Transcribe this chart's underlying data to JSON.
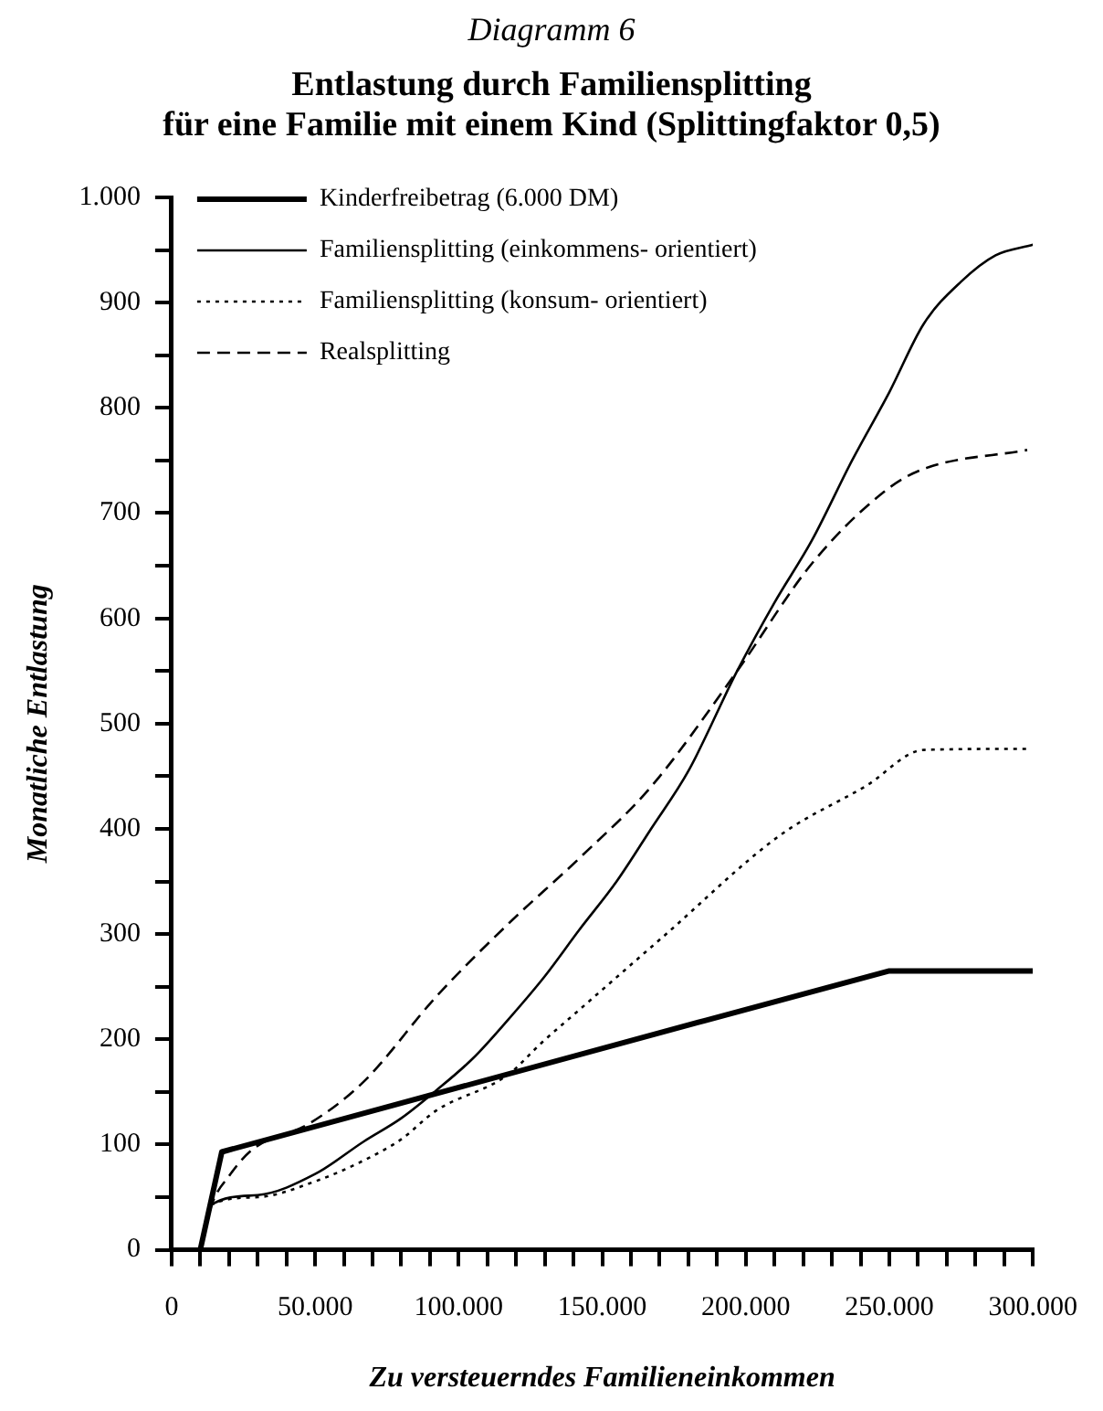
{
  "chart_data": {
    "type": "line",
    "title": "Diagramm 6",
    "subtitle": "Entlastung durch Familiensplitting\nfür eine Familie mit einem Kind (Splittingfaktor 0,5)",
    "xlabel": "Zu versteuerndes Familieneinkommen",
    "ylabel": "Monatliche Entlastung",
    "xlim": [
      0,
      300000
    ],
    "ylim": [
      0,
      1000
    ],
    "xticks": [
      0,
      {
        "value": 10000,
        "label": null
      },
      {
        "value": 20000,
        "label": null
      },
      {
        "value": 30000,
        "label": null
      },
      {
        "value": 40000,
        "label": null
      },
      {
        "value": 50000,
        "label": "50.000"
      },
      {
        "value": 60000,
        "label": null
      },
      {
        "value": 70000,
        "label": null
      },
      {
        "value": 80000,
        "label": null
      },
      {
        "value": 90000,
        "label": null
      },
      {
        "value": 100000,
        "label": "100.000"
      },
      {
        "value": 110000,
        "label": null
      },
      {
        "value": 120000,
        "label": null
      },
      {
        "value": 130000,
        "label": null
      },
      {
        "value": 140000,
        "label": null
      },
      {
        "value": 150000,
        "label": "150.000"
      },
      {
        "value": 160000,
        "label": null
      },
      {
        "value": 170000,
        "label": null
      },
      {
        "value": 180000,
        "label": null
      },
      {
        "value": 190000,
        "label": null
      },
      {
        "value": 200000,
        "label": "200.000"
      },
      {
        "value": 210000,
        "label": null
      },
      {
        "value": 220000,
        "label": null
      },
      {
        "value": 230000,
        "label": null
      },
      {
        "value": 240000,
        "label": null
      },
      {
        "value": 250000,
        "label": "250.000"
      },
      {
        "value": 260000,
        "label": null
      },
      {
        "value": 270000,
        "label": null
      },
      {
        "value": 280000,
        "label": null
      },
      {
        "value": 290000,
        "label": null
      },
      {
        "value": 300000,
        "label": "300.000"
      }
    ],
    "yticks": [
      0,
      {
        "value": 50,
        "label": null
      },
      100,
      {
        "value": 150,
        "label": null
      },
      200,
      {
        "value": 250,
        "label": null
      },
      300,
      {
        "value": 350,
        "label": null
      },
      400,
      {
        "value": 450,
        "label": null
      },
      500,
      {
        "value": 550,
        "label": null
      },
      600,
      {
        "value": 650,
        "label": null
      },
      700,
      {
        "value": 750,
        "label": null
      },
      800,
      {
        "value": 850,
        "label": null
      },
      900,
      {
        "value": 950,
        "label": null
      },
      {
        "value": 1000,
        "label": "1.000"
      }
    ],
    "grid": false,
    "legend": "top left",
    "marker": "none",
    "series": [
      {
        "name": "Kinderfreibetrag (6.000 DM)",
        "color": "#000000",
        "line_style": "solid",
        "x": [
          10000,
          17500,
          186000,
          250000,
          300000
        ],
        "values": [
          0,
          93,
          218,
          265,
          265
        ]
      },
      {
        "name": "Familiensplitting (einkommens- orientiert)",
        "color": "#000000",
        "line_style": "solid",
        "x": [
          10000,
          14000,
          30000,
          50000,
          67000,
          80000,
          92000,
          105000,
          117000,
          130000,
          142000,
          155000,
          167000,
          180000,
          197000,
          210000,
          223000,
          237000,
          250000,
          262000,
          275000,
          287000,
          300000
        ],
        "values": [
          0,
          43,
          52,
          72,
          103,
          125,
          151,
          182,
          218,
          260,
          304,
          350,
          400,
          455,
          550,
          615,
          674,
          750,
          815,
          880,
          920,
          945,
          955
        ]
      },
      {
        "name": "Familiensplitting (konsum- orientiert)",
        "color": "#000000",
        "line_style": "dotted",
        "x": [
          10000,
          14000,
          30000,
          50000,
          67000,
          80000,
          92000,
          117000,
          129000,
          142000,
          171000,
          212000,
          242000,
          262000,
          298000
        ],
        "values": [
          0,
          43,
          50,
          65,
          85,
          105,
          132,
          166,
          197,
          228,
          297,
          394,
          441,
          475,
          476
        ]
      },
      {
        "name": "Realsplitting",
        "color": "#000000",
        "line_style": "dashed",
        "x": [
          10000,
          14000,
          20000,
          28000,
          48000,
          67000,
          92000,
          117000,
          142000,
          167000,
          197000,
          223000,
          248000,
          261000,
          298000
        ],
        "values": [
          0,
          43,
          70,
          95,
          120,
          160,
          240,
          309,
          372,
          440,
          550,
          652,
          720,
          741,
          760
        ]
      }
    ]
  }
}
